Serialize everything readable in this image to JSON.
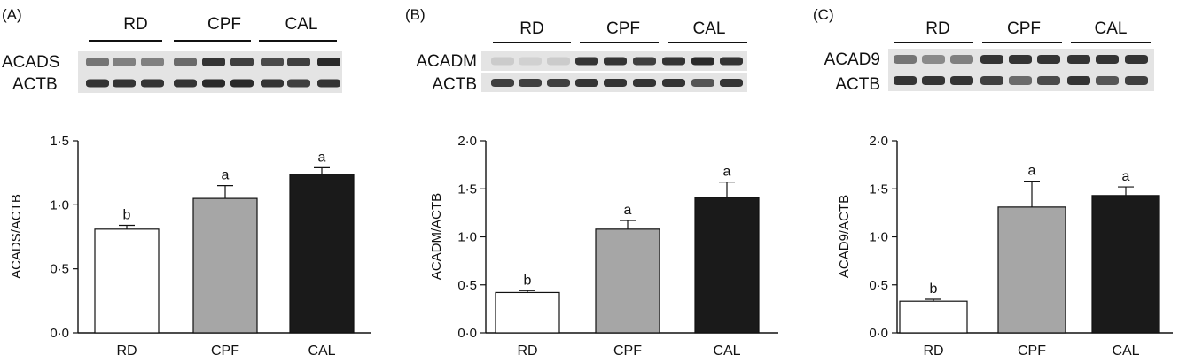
{
  "panels": [
    {
      "letter": "(A)",
      "groups": [
        "RD",
        "CPF",
        "CAL"
      ],
      "blot_labels": [
        "ACADS",
        "ACTB"
      ],
      "blot_intensity": [
        [
          0.55,
          0.5,
          0.5,
          0.6,
          0.85,
          0.8,
          0.75,
          0.8,
          0.9
        ],
        [
          0.85,
          0.85,
          0.85,
          0.85,
          0.9,
          0.9,
          0.85,
          0.8,
          0.85
        ]
      ]
    },
    {
      "letter": "(B)",
      "groups": [
        "RD",
        "CPF",
        "CAL"
      ],
      "blot_labels": [
        "ACADM",
        "ACTB"
      ],
      "blot_intensity": [
        [
          0.15,
          0.12,
          0.15,
          0.85,
          0.85,
          0.8,
          0.85,
          0.9,
          0.85
        ],
        [
          0.8,
          0.8,
          0.8,
          0.85,
          0.85,
          0.85,
          0.85,
          0.7,
          0.85
        ]
      ]
    },
    {
      "letter": "(C)",
      "groups": [
        "RD",
        "CPF",
        "CAL"
      ],
      "blot_labels": [
        "ACAD9",
        "ACTB"
      ],
      "blot_intensity": [
        [
          0.55,
          0.45,
          0.5,
          0.85,
          0.85,
          0.85,
          0.85,
          0.85,
          0.85
        ],
        [
          0.85,
          0.85,
          0.85,
          0.8,
          0.6,
          0.75,
          0.85,
          0.7,
          0.8
        ]
      ]
    }
  ],
  "chart_data": [
    {
      "type": "bar",
      "categories": [
        "RD",
        "CPF",
        "CAL"
      ],
      "values": [
        0.81,
        1.05,
        1.24
      ],
      "errors": [
        0.03,
        0.1,
        0.05
      ],
      "significance": [
        "b",
        "a",
        "a"
      ],
      "ylabel": "ACADS/ACTB",
      "ylim": [
        0,
        1.5
      ],
      "yticks": [
        0,
        0.5,
        1.0,
        1.5
      ],
      "yticklabels": [
        "0·0",
        "0·5",
        "1·0",
        "1·5"
      ],
      "colors": [
        "#ffffff",
        "#a6a6a6",
        "#1a1a1a"
      ]
    },
    {
      "type": "bar",
      "categories": [
        "RD",
        "CPF",
        "CAL"
      ],
      "values": [
        0.42,
        1.08,
        1.41
      ],
      "errors": [
        0.02,
        0.09,
        0.16
      ],
      "significance": [
        "b",
        "a",
        "a"
      ],
      "ylabel": "ACADM/ACTB",
      "ylim": [
        0,
        2.0
      ],
      "yticks": [
        0,
        0.5,
        1.0,
        1.5,
        2.0
      ],
      "yticklabels": [
        "0·0",
        "0·5",
        "1·0",
        "1·5",
        "2·0"
      ],
      "colors": [
        "#ffffff",
        "#a6a6a6",
        "#1a1a1a"
      ]
    },
    {
      "type": "bar",
      "categories": [
        "RD",
        "CPF",
        "CAL"
      ],
      "values": [
        0.33,
        1.31,
        1.43
      ],
      "errors": [
        0.02,
        0.27,
        0.09
      ],
      "significance": [
        "b",
        "a",
        "a"
      ],
      "ylabel": "ACAD9/ACTB",
      "ylim": [
        0,
        2.0
      ],
      "yticks": [
        0,
        0.5,
        1.0,
        1.5,
        2.0
      ],
      "yticklabels": [
        "0·0",
        "0·5",
        "1·0",
        "1·5",
        "2·0"
      ],
      "colors": [
        "#ffffff",
        "#a6a6a6",
        "#1a1a1a"
      ]
    }
  ]
}
